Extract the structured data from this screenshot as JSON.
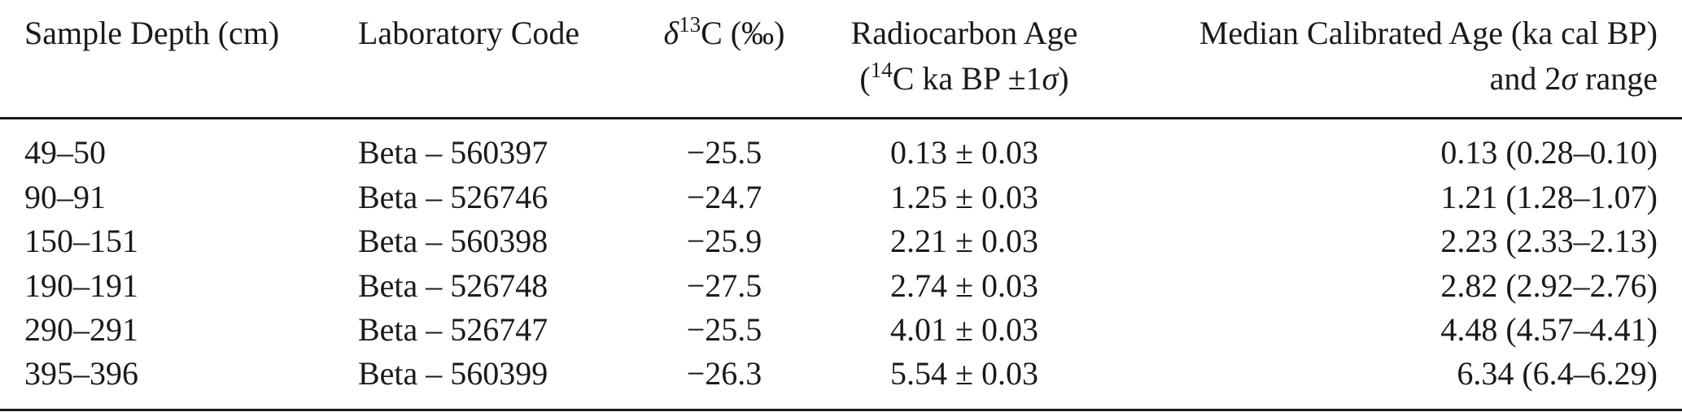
{
  "headers": {
    "depth": "Sample Depth (cm)",
    "lab_code": "Laboratory Code",
    "d13c": {
      "symbol": "δ",
      "sup": "13",
      "rest": "C (‰)"
    },
    "radiocarbon": {
      "line1": "Radiocarbon Age",
      "line2_open": "(",
      "line2_sup": "14",
      "line2_mid": "C ka BP ±1",
      "line2_sigma": "σ",
      "line2_close": ")"
    },
    "calibrated": {
      "line1": "Median Calibrated Age (ka cal BP)",
      "line2_pre": "and 2",
      "line2_sigma": "σ",
      "line2_post": " range"
    }
  },
  "rows": [
    {
      "depth": "49–50",
      "lab_code": "Beta – 560397",
      "d13c": "−25.5",
      "age": "0.13 ± 0.03",
      "calibrated": "0.13 (0.28–0.10)"
    },
    {
      "depth": "90–91",
      "lab_code": "Beta – 526746",
      "d13c": "−24.7",
      "age": "1.25 ± 0.03",
      "calibrated": "1.21 (1.28–1.07)"
    },
    {
      "depth": "150–151",
      "lab_code": "Beta – 560398",
      "d13c": "−25.9",
      "age": "2.21 ± 0.03",
      "calibrated": "2.23 (2.33–2.13)"
    },
    {
      "depth": "190–191",
      "lab_code": "Beta – 526748",
      "d13c": "−27.5",
      "age": "2.74 ± 0.03",
      "calibrated": "2.82 (2.92–2.76)"
    },
    {
      "depth": "290–291",
      "lab_code": "Beta – 526747",
      "d13c": "−25.5",
      "age": "4.01 ± 0.03",
      "calibrated": "4.48 (4.57–4.41)"
    },
    {
      "depth": "395–396",
      "lab_code": "Beta – 560399",
      "d13c": "−26.3",
      "age": "5.54 ± 0.03",
      "calibrated": "6.34 (6.4–6.29)"
    }
  ]
}
